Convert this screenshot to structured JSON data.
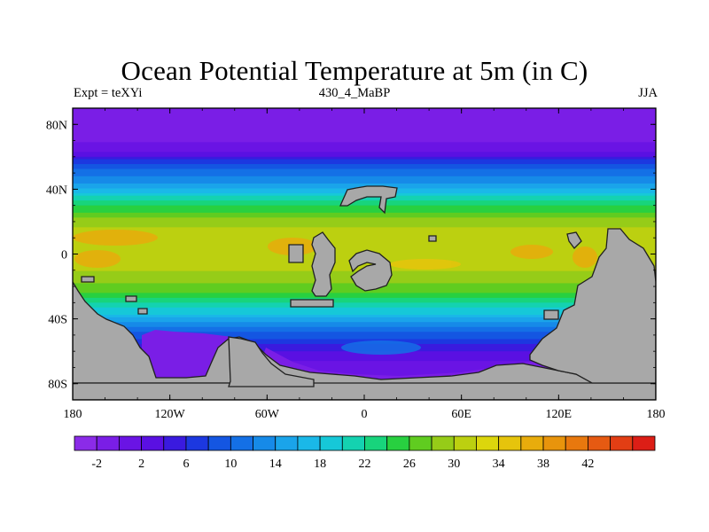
{
  "title": "Ocean Potential Temperature at 5m (in C)",
  "subtitle_left": "Expt = teXYi",
  "subtitle_center": "430_4_MaBP",
  "subtitle_right": "JJA",
  "map": {
    "lon_range": [
      -180,
      180
    ],
    "lat_range": [
      -90,
      90
    ],
    "x_ticks": [
      {
        "lon": -180,
        "label": "180"
      },
      {
        "lon": -120,
        "label": "120W"
      },
      {
        "lon": -60,
        "label": "60W"
      },
      {
        "lon": 0,
        "label": "0"
      },
      {
        "lon": 60,
        "label": "60E"
      },
      {
        "lon": 120,
        "label": "120E"
      },
      {
        "lon": 180,
        "label": "180"
      }
    ],
    "y_ticks": [
      {
        "lat": 80,
        "label": "80N"
      },
      {
        "lat": 40,
        "label": "40N"
      },
      {
        "lat": 0,
        "label": "0"
      },
      {
        "lat": -40,
        "label": "40S"
      },
      {
        "lat": -80,
        "label": "80S"
      }
    ],
    "land_color": "#a8a8a8",
    "temperature_profile": [
      {
        "lat": 90,
        "value": -2
      },
      {
        "lat": 74,
        "value": -1
      },
      {
        "lat": 64,
        "value": 1
      },
      {
        "lat": 58,
        "value": 6
      },
      {
        "lat": 52,
        "value": 10
      },
      {
        "lat": 45,
        "value": 13
      },
      {
        "lat": 38,
        "value": 18
      },
      {
        "lat": 30,
        "value": 24
      },
      {
        "lat": 22,
        "value": 28
      },
      {
        "lat": 14,
        "value": 31
      },
      {
        "lat": 5,
        "value": 32
      },
      {
        "lat": -5,
        "value": 31
      },
      {
        "lat": -15,
        "value": 29
      },
      {
        "lat": -24,
        "value": 26
      },
      {
        "lat": -30,
        "value": 22
      },
      {
        "lat": -37,
        "value": 18
      },
      {
        "lat": -45,
        "value": 12
      },
      {
        "lat": -52,
        "value": 8
      },
      {
        "lat": -60,
        "value": 4
      },
      {
        "lat": -70,
        "value": 1
      },
      {
        "lat": -90,
        "value": -2
      }
    ]
  },
  "colorbar": {
    "colors": [
      "#8b2be8",
      "#7a1ee6",
      "#6a14e4",
      "#5a10e2",
      "#3a1adf",
      "#1c38e0",
      "#1456e2",
      "#1470e6",
      "#168ae8",
      "#1aa4ea",
      "#1ab8e8",
      "#16c8d8",
      "#14d2b0",
      "#18d47c",
      "#28d040",
      "#60cc20",
      "#96cc18",
      "#bcd010",
      "#dcd60c",
      "#e6c40c",
      "#e8ac0c",
      "#e8940c",
      "#e8780e",
      "#e65a12",
      "#e23e14",
      "#dc1e16"
    ],
    "labels": [
      "-2",
      "2",
      "6",
      "10",
      "14",
      "18",
      "22",
      "26",
      "30",
      "34",
      "38",
      "42"
    ]
  }
}
